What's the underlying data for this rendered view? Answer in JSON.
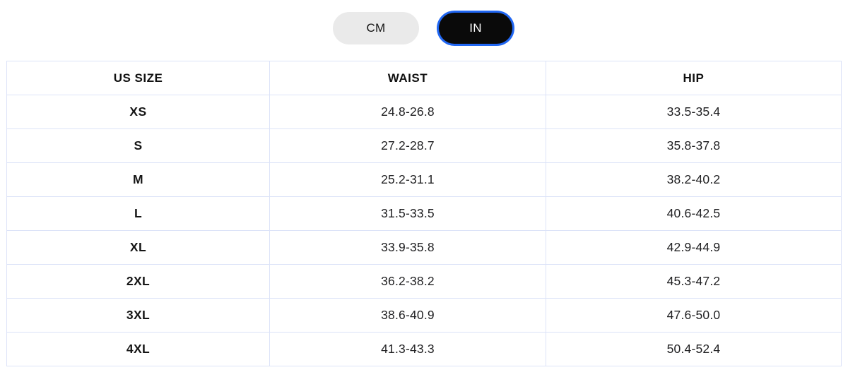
{
  "unit_toggle": {
    "options": [
      {
        "label": "CM",
        "selected": false
      },
      {
        "label": "IN",
        "selected": true
      }
    ],
    "cm_label": "CM",
    "in_label": "IN",
    "selected_unit": "IN",
    "selected_bg_color": "#0a0a0a",
    "selected_ring_color": "#2167f3",
    "unselected_bg_color": "#eaeaea"
  },
  "size_table": {
    "border_color": "#dce3f8",
    "columns": [
      "US SIZE",
      "WAIST",
      "HIP"
    ],
    "rows": [
      {
        "size": "XS",
        "waist": "24.8-26.8",
        "hip": "33.5-35.4"
      },
      {
        "size": "S",
        "waist": "27.2-28.7",
        "hip": "35.8-37.8"
      },
      {
        "size": "M",
        "waist": "25.2-31.1",
        "hip": "38.2-40.2"
      },
      {
        "size": "L",
        "waist": "31.5-33.5",
        "hip": "40.6-42.5"
      },
      {
        "size": "XL",
        "waist": "33.9-35.8",
        "hip": "42.9-44.9"
      },
      {
        "size": "2XL",
        "waist": "36.2-38.2",
        "hip": "45.3-47.2"
      },
      {
        "size": "3XL",
        "waist": "38.6-40.9",
        "hip": "47.6-50.0"
      },
      {
        "size": "4XL",
        "waist": "41.3-43.3",
        "hip": "50.4-52.4"
      }
    ]
  }
}
